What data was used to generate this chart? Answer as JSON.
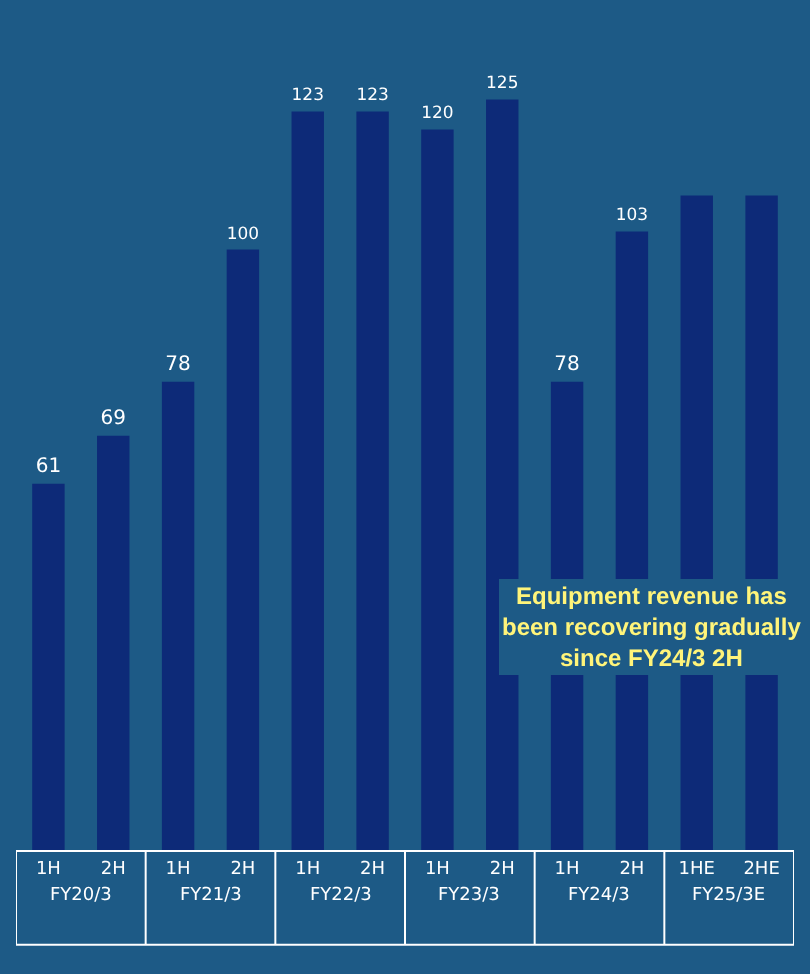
{
  "chart_data": {
    "type": "bar",
    "categories": [
      "1H",
      "2H",
      "1H",
      "2H",
      "1H",
      "2H",
      "1H",
      "2H",
      "1H",
      "2H",
      "1HE",
      "2HE"
    ],
    "values": [
      61,
      69,
      78,
      100,
      123,
      123,
      120,
      125,
      78,
      103,
      109,
      109
    ],
    "value_labels": [
      "61",
      "69",
      "78",
      "100",
      "123",
      "123",
      "120",
      "125",
      "78",
      "103",
      null,
      null
    ],
    "color": "#0d2a78",
    "annotations": [
      "FY20/3",
      "FY21/3",
      "FY22/3",
      "FY23/3",
      "FY24/3",
      "FY25/3E",
      "Equipment revenue has been recovering gradually since FY24/3 2H"
    ],
    "grid": false,
    "legend": false
  }
}
